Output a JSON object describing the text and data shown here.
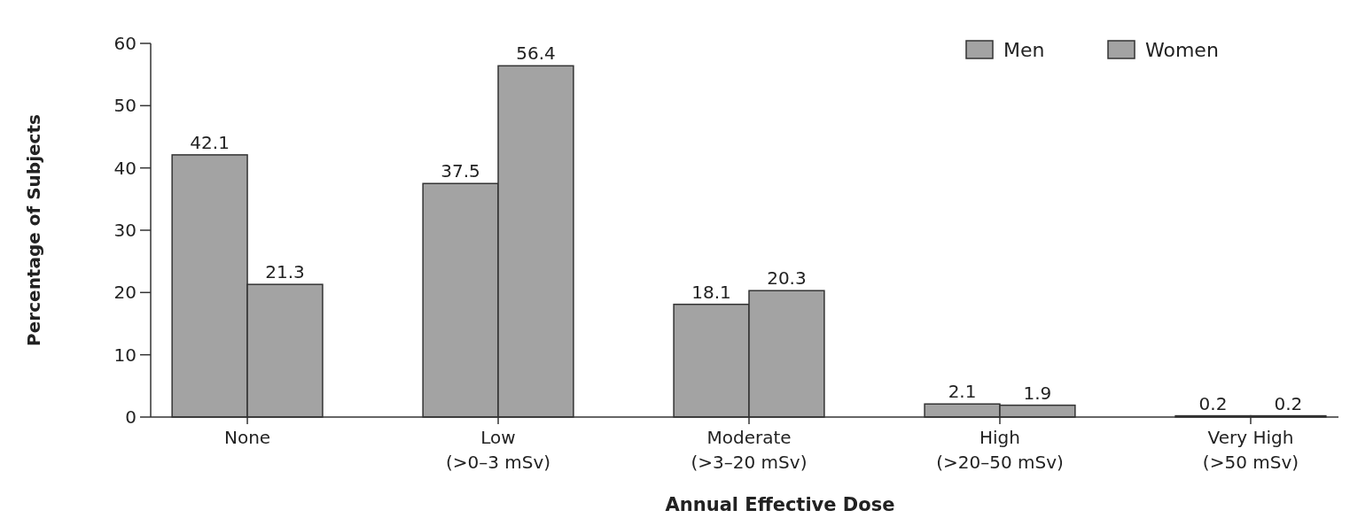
{
  "chart_data": {
    "type": "bar",
    "xlabel": "Annual Effective Dose",
    "ylabel": "Percentage of Subjects",
    "categories": [
      "None",
      "Low\n(>0–3 mSv)",
      "Moderate\n(>3–20 mSv)",
      "High\n(>20–50 mSv)",
      "Very High\n(>50 mSv)"
    ],
    "series": [
      {
        "name": "Men",
        "color": "#a3a3a3",
        "values": [
          42.1,
          37.5,
          18.1,
          2.1,
          0.2
        ]
      },
      {
        "name": "Women",
        "color": "#a3a3a3",
        "values": [
          21.3,
          56.4,
          20.3,
          1.9,
          0.2
        ]
      }
    ],
    "ylim": [
      0,
      60
    ],
    "yticks": [
      0,
      10,
      20,
      30,
      40,
      50,
      60
    ],
    "data_labels": true,
    "legend": "top right",
    "grid": false
  }
}
